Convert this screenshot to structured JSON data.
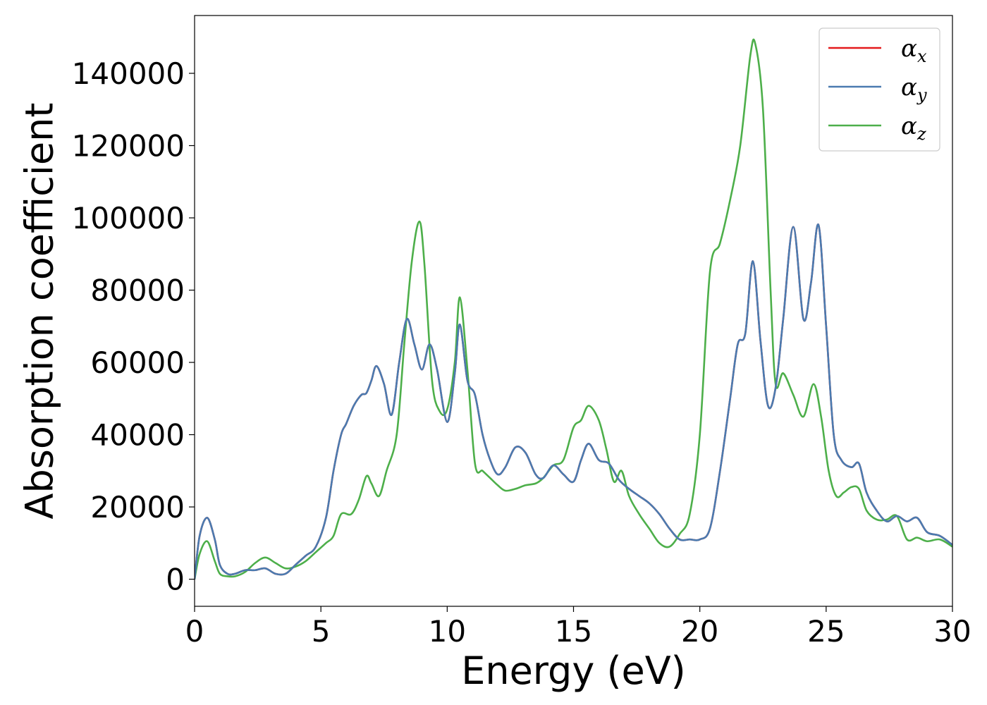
{
  "chart_data": {
    "type": "line",
    "xlabel": "Energy (eV)",
    "ylabel": "Absorption coefficient",
    "xlim": [
      0,
      30
    ],
    "ylim": [
      -7500,
      156000
    ],
    "xticks": [
      0,
      5,
      10,
      15,
      20,
      25,
      30
    ],
    "yticks": [
      0,
      20000,
      40000,
      60000,
      80000,
      100000,
      120000,
      140000
    ],
    "grid": false,
    "legend_position": "top-right",
    "series": [
      {
        "name": "α_x",
        "symbol": "α",
        "subscript": "x",
        "color": "#e41a1c",
        "x": [
          0,
          0.2,
          0.5,
          0.8,
          1.0,
          1.3,
          1.6,
          2.0,
          2.4,
          2.8,
          3.2,
          3.6,
          4.0,
          4.4,
          4.8,
          5.2,
          5.5,
          5.8,
          6.0,
          6.3,
          6.6,
          6.8,
          7.0,
          7.2,
          7.5,
          7.8,
          8.1,
          8.4,
          8.7,
          9.0,
          9.3,
          9.6,
          10.0,
          10.3,
          10.5,
          10.8,
          11.1,
          11.4,
          11.7,
          12.0,
          12.3,
          12.7,
          13.1,
          13.5,
          13.8,
          14.2,
          14.6,
          15.0,
          15.3,
          15.6,
          16.0,
          16.4,
          16.8,
          17.2,
          17.6,
          18.0,
          18.4,
          18.8,
          19.2,
          19.6,
          20.0,
          20.4,
          20.8,
          21.2,
          21.5,
          21.8,
          22.1,
          22.4,
          22.7,
          23.0,
          23.3,
          23.7,
          24.1,
          24.4,
          24.7,
          25.0,
          25.3,
          25.6,
          26.0,
          26.3,
          26.6,
          27.0,
          27.4,
          27.8,
          28.2,
          28.6,
          29.0,
          29.5,
          30.0
        ],
        "y": [
          0,
          12000,
          17000,
          11000,
          4000,
          1500,
          1500,
          2500,
          2500,
          3000,
          1500,
          1500,
          4000,
          6500,
          9000,
          17000,
          30000,
          40000,
          43000,
          48000,
          51000,
          51500,
          55000,
          59000,
          54000,
          45500,
          60000,
          72000,
          65000,
          58000,
          65000,
          58000,
          43500,
          57000,
          70500,
          55000,
          51000,
          40000,
          33000,
          29000,
          31000,
          36500,
          35000,
          29000,
          28000,
          31500,
          29000,
          27000,
          33000,
          37500,
          33000,
          32000,
          27500,
          25000,
          23000,
          21000,
          18000,
          14000,
          11000,
          11000,
          11000,
          14000,
          30000,
          50000,
          65000,
          68000,
          88000,
          66000,
          48000,
          53000,
          72000,
          97500,
          72000,
          82000,
          98000,
          70000,
          40000,
          33000,
          31000,
          32000,
          24000,
          19000,
          16000,
          17500,
          16000,
          17000,
          13000,
          12000,
          9500
        ]
      },
      {
        "name": "α_y",
        "symbol": "α",
        "subscript": "y",
        "color": "#4a7bb0",
        "x": [
          0,
          0.2,
          0.5,
          0.8,
          1.0,
          1.3,
          1.6,
          2.0,
          2.4,
          2.8,
          3.2,
          3.6,
          4.0,
          4.4,
          4.8,
          5.2,
          5.5,
          5.8,
          6.0,
          6.3,
          6.6,
          6.8,
          7.0,
          7.2,
          7.5,
          7.8,
          8.1,
          8.4,
          8.7,
          9.0,
          9.3,
          9.6,
          10.0,
          10.3,
          10.5,
          10.8,
          11.1,
          11.4,
          11.7,
          12.0,
          12.3,
          12.7,
          13.1,
          13.5,
          13.8,
          14.2,
          14.6,
          15.0,
          15.3,
          15.6,
          16.0,
          16.4,
          16.8,
          17.2,
          17.6,
          18.0,
          18.4,
          18.8,
          19.2,
          19.6,
          20.0,
          20.4,
          20.8,
          21.2,
          21.5,
          21.8,
          22.1,
          22.4,
          22.7,
          23.0,
          23.3,
          23.7,
          24.1,
          24.4,
          24.7,
          25.0,
          25.3,
          25.6,
          26.0,
          26.3,
          26.6,
          27.0,
          27.4,
          27.8,
          28.2,
          28.6,
          29.0,
          29.5,
          30.0
        ],
        "y": [
          0,
          12000,
          17000,
          11000,
          4000,
          1500,
          1500,
          2500,
          2500,
          3000,
          1500,
          1500,
          4000,
          6500,
          9000,
          17000,
          30000,
          40000,
          43000,
          48000,
          51000,
          51500,
          55000,
          59000,
          54000,
          45500,
          60000,
          72000,
          65000,
          58000,
          65000,
          58000,
          43500,
          57000,
          70500,
          55000,
          51000,
          40000,
          33000,
          29000,
          31000,
          36500,
          35000,
          29000,
          28000,
          31500,
          29000,
          27000,
          33000,
          37500,
          33000,
          32000,
          27500,
          25000,
          23000,
          21000,
          18000,
          14000,
          11000,
          11000,
          11000,
          14000,
          30000,
          50000,
          65000,
          68000,
          88000,
          66000,
          48000,
          53000,
          72000,
          97500,
          72000,
          82000,
          98000,
          70000,
          40000,
          33000,
          31000,
          32000,
          24000,
          19000,
          16000,
          17500,
          16000,
          17000,
          13000,
          12000,
          9500
        ]
      },
      {
        "name": "α_z",
        "symbol": "α",
        "subscript": "z",
        "color": "#4daf4a",
        "x": [
          0,
          0.2,
          0.5,
          0.8,
          1.0,
          1.3,
          1.6,
          2.0,
          2.4,
          2.8,
          3.2,
          3.6,
          4.0,
          4.4,
          4.8,
          5.2,
          5.5,
          5.8,
          6.2,
          6.5,
          6.8,
          7.0,
          7.3,
          7.6,
          8.0,
          8.3,
          8.6,
          8.9,
          9.1,
          9.4,
          9.7,
          10.0,
          10.3,
          10.5,
          10.8,
          11.1,
          11.4,
          11.7,
          12.0,
          12.3,
          12.7,
          13.1,
          13.5,
          13.8,
          14.2,
          14.6,
          15.0,
          15.3,
          15.6,
          16.0,
          16.3,
          16.6,
          16.9,
          17.2,
          17.6,
          18.0,
          18.4,
          18.8,
          19.2,
          19.6,
          20.0,
          20.4,
          20.8,
          21.2,
          21.6,
          22.0,
          22.2,
          22.5,
          22.8,
          23.0,
          23.3,
          23.7,
          24.1,
          24.5,
          24.8,
          25.1,
          25.4,
          25.7,
          26.0,
          26.3,
          26.6,
          27.0,
          27.4,
          27.8,
          28.2,
          28.6,
          29.0,
          29.5,
          30.0
        ],
        "y": [
          0,
          7000,
          10500,
          5000,
          1500,
          800,
          800,
          2000,
          4500,
          6000,
          4500,
          3000,
          3500,
          5000,
          7500,
          10000,
          12000,
          18000,
          18000,
          22000,
          28500,
          26500,
          23000,
          30000,
          40000,
          65000,
          88000,
          99000,
          87000,
          55000,
          46500,
          47000,
          60000,
          78000,
          58000,
          32000,
          30000,
          28000,
          26000,
          24500,
          25000,
          26000,
          26500,
          28000,
          31500,
          33000,
          42000,
          44000,
          48000,
          44000,
          36000,
          27000,
          30000,
          23000,
          18000,
          14000,
          10000,
          9000,
          12500,
          18000,
          40000,
          85000,
          93000,
          105000,
          120000,
          145000,
          148000,
          130000,
          80000,
          54000,
          57000,
          51000,
          45000,
          54000,
          45000,
          30000,
          23000,
          24000,
          25500,
          25000,
          19000,
          16500,
          16500,
          17500,
          11000,
          11500,
          10500,
          11000,
          9000
        ]
      }
    ]
  }
}
